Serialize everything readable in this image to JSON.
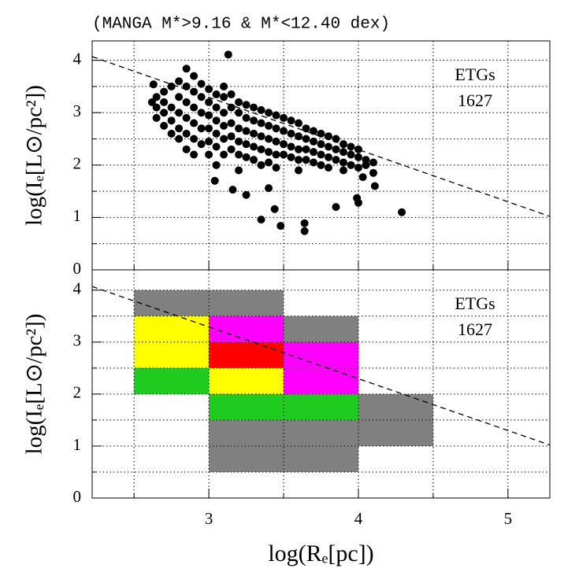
{
  "chart_data": [
    {
      "type": "scatter",
      "title": "(MANGA M*>9.16 & M*<12.40 dex)",
      "ylabel": "log(Iₑ[L⊙/pc²])",
      "annotations": [
        "ETGs",
        "1627"
      ],
      "color": "#000000",
      "xlim": [
        2.22,
        5.28
      ],
      "ylim": [
        0,
        4.37
      ],
      "yticks": [
        0,
        1,
        2,
        3,
        4
      ],
      "grid_x": [
        2.5,
        3,
        3.5,
        4,
        4.5,
        5
      ],
      "grid_y": [
        0.5,
        1,
        1.5,
        2,
        2.5,
        3,
        3.5,
        4
      ],
      "line": {
        "x": [
          2.22,
          5.28
        ],
        "y": [
          4.07,
          1.02
        ],
        "style": "dashed"
      },
      "x": [
        2.65,
        2.65,
        2.65,
        2.7,
        2.7,
        2.7,
        2.7,
        2.75,
        2.75,
        2.75,
        2.75,
        2.8,
        2.8,
        2.8,
        2.8,
        2.8,
        2.85,
        2.85,
        2.85,
        2.85,
        2.85,
        2.9,
        2.9,
        2.9,
        2.9,
        2.9,
        2.9,
        2.95,
        2.95,
        2.95,
        2.95,
        2.95,
        3.0,
        3.0,
        3.0,
        3.0,
        3.0,
        3.0,
        3.05,
        3.05,
        3.05,
        3.05,
        3.05,
        3.05,
        3.1,
        3.1,
        3.1,
        3.1,
        3.1,
        3.1,
        3.15,
        3.15,
        3.15,
        3.15,
        3.15,
        3.2,
        3.2,
        3.2,
        3.2,
        3.2,
        3.2,
        3.25,
        3.25,
        3.25,
        3.25,
        3.25,
        3.3,
        3.3,
        3.3,
        3.3,
        3.3,
        3.35,
        3.35,
        3.35,
        3.35,
        3.35,
        3.4,
        3.4,
        3.4,
        3.4,
        3.4,
        3.45,
        3.45,
        3.45,
        3.45,
        3.45,
        3.5,
        3.5,
        3.5,
        3.5,
        3.55,
        3.55,
        3.55,
        3.55,
        3.6,
        3.6,
        3.6,
        3.6,
        3.6,
        3.65,
        3.65,
        3.65,
        3.65,
        3.7,
        3.7,
        3.7,
        3.7,
        3.75,
        3.75,
        3.75,
        3.75,
        3.8,
        3.8,
        3.8,
        3.8,
        3.85,
        3.85,
        3.85,
        3.9,
        3.9,
        3.9,
        3.9,
        3.95,
        3.95,
        3.95,
        4.0,
        4.0,
        4.0,
        4.05,
        4.05,
        4.1,
        4.1,
        3.13,
        2.85,
        2.63,
        2.62,
        3.35,
        3.48,
        3.64,
        3.64,
        3.44,
        3.85,
        4.29,
        4.0,
        3.99,
        4.11,
        3.04,
        3.16,
        3.25,
        3.4,
        4.03
      ],
      "y": [
        3.1,
        3.3,
        2.9,
        3.2,
        3.0,
        2.75,
        3.4,
        3.1,
        3.5,
        2.85,
        2.6,
        3.3,
        3.0,
        2.7,
        3.6,
        2.5,
        3.2,
        2.9,
        3.5,
        2.6,
        2.3,
        3.4,
        3.1,
        2.8,
        2.5,
        3.7,
        2.2,
        3.3,
        3.0,
        2.7,
        2.4,
        3.55,
        3.2,
        2.95,
        2.7,
        2.45,
        3.45,
        2.2,
        3.1,
        2.85,
        2.6,
        3.35,
        2.35,
        2.0,
        3.0,
        2.75,
        3.3,
        2.5,
        2.2,
        3.5,
        3.1,
        2.8,
        2.55,
        2.3,
        3.35,
        3.0,
        2.7,
        2.45,
        3.2,
        2.2,
        1.9,
        2.9,
        2.65,
        3.15,
        2.4,
        2.15,
        2.85,
        2.6,
        3.1,
        2.35,
        2.1,
        2.8,
        2.55,
        3.05,
        2.3,
        2.0,
        2.75,
        2.5,
        3.0,
        2.25,
        2.05,
        2.7,
        2.45,
        2.95,
        2.2,
        1.95,
        2.65,
        2.4,
        2.9,
        2.2,
        2.6,
        2.35,
        2.85,
        2.15,
        2.55,
        2.3,
        2.8,
        2.1,
        1.9,
        2.5,
        2.3,
        2.7,
        2.1,
        2.45,
        2.25,
        2.65,
        2.05,
        2.4,
        2.2,
        2.6,
        2.0,
        2.35,
        2.15,
        2.55,
        1.95,
        2.3,
        2.1,
        2.5,
        2.25,
        2.05,
        2.4,
        1.9,
        2.2,
        2.0,
        2.35,
        2.15,
        2.3,
        1.95,
        2.1,
        2.0,
        2.05,
        1.85,
        4.11,
        3.84,
        3.54,
        3.2,
        0.96,
        0.84,
        0.89,
        0.74,
        1.16,
        1.2,
        1.1,
        1.28,
        1.37,
        1.6,
        1.7,
        1.53,
        1.43,
        1.56,
        1.77
      ]
    },
    {
      "type": "heatmap",
      "xlabel": "log(Rₑ[pc])",
      "ylabel": "log(Iₑ[L⊙/pc²])",
      "annotations": [
        "ETGs",
        "1627"
      ],
      "xlim": [
        2.22,
        5.28
      ],
      "ylim": [
        0,
        4.39
      ],
      "xticks": [
        3,
        4,
        5
      ],
      "yticks": [
        0,
        1,
        2,
        3,
        4
      ],
      "grid_x": [
        2.5,
        3,
        3.5,
        4,
        4.5,
        5
      ],
      "grid_y": [
        0.5,
        1,
        1.5,
        2,
        2.5,
        3,
        3.5,
        4
      ],
      "line": {
        "x": [
          2.22,
          5.28
        ],
        "y": [
          4.07,
          1.02
        ],
        "style": "dashed"
      },
      "cells": [
        {
          "x": [
            2.5,
            3.0
          ],
          "y": [
            3.5,
            4.0
          ],
          "color": "#808080"
        },
        {
          "x": [
            3.0,
            3.5
          ],
          "y": [
            3.5,
            4.0
          ],
          "color": "#808080"
        },
        {
          "x": [
            2.5,
            3.0
          ],
          "y": [
            3.0,
            3.5
          ],
          "color": "#ffff00"
        },
        {
          "x": [
            3.0,
            3.5
          ],
          "y": [
            3.0,
            3.5
          ],
          "color": "#ff00ff"
        },
        {
          "x": [
            3.5,
            4.0
          ],
          "y": [
            3.0,
            3.5
          ],
          "color": "#808080"
        },
        {
          "x": [
            2.5,
            3.0
          ],
          "y": [
            2.5,
            3.0
          ],
          "color": "#ffff00"
        },
        {
          "x": [
            3.0,
            3.5
          ],
          "y": [
            2.5,
            3.0
          ],
          "color": "#ff0000"
        },
        {
          "x": [
            3.5,
            4.0
          ],
          "y": [
            2.5,
            3.0
          ],
          "color": "#ff00ff"
        },
        {
          "x": [
            2.5,
            3.0
          ],
          "y": [
            2.0,
            2.5
          ],
          "color": "#1ecb1e"
        },
        {
          "x": [
            3.0,
            3.5
          ],
          "y": [
            2.0,
            2.5
          ],
          "color": "#ffff00"
        },
        {
          "x": [
            3.5,
            4.0
          ],
          "y": [
            2.0,
            2.5
          ],
          "color": "#ff00ff"
        },
        {
          "x": [
            3.0,
            3.5
          ],
          "y": [
            1.5,
            2.0
          ],
          "color": "#1ecb1e"
        },
        {
          "x": [
            3.5,
            4.0
          ],
          "y": [
            1.5,
            2.0
          ],
          "color": "#1ecb1e"
        },
        {
          "x": [
            4.0,
            4.5
          ],
          "y": [
            1.5,
            2.0
          ],
          "color": "#808080"
        },
        {
          "x": [
            3.0,
            3.5
          ],
          "y": [
            1.0,
            1.5
          ],
          "color": "#808080"
        },
        {
          "x": [
            3.5,
            4.0
          ],
          "y": [
            1.0,
            1.5
          ],
          "color": "#808080"
        },
        {
          "x": [
            4.0,
            4.5
          ],
          "y": [
            1.0,
            1.5
          ],
          "color": "#808080"
        },
        {
          "x": [
            3.0,
            3.5
          ],
          "y": [
            0.5,
            1.0
          ],
          "color": "#808080"
        },
        {
          "x": [
            3.5,
            4.0
          ],
          "y": [
            0.5,
            1.0
          ],
          "color": "#808080"
        }
      ]
    }
  ]
}
